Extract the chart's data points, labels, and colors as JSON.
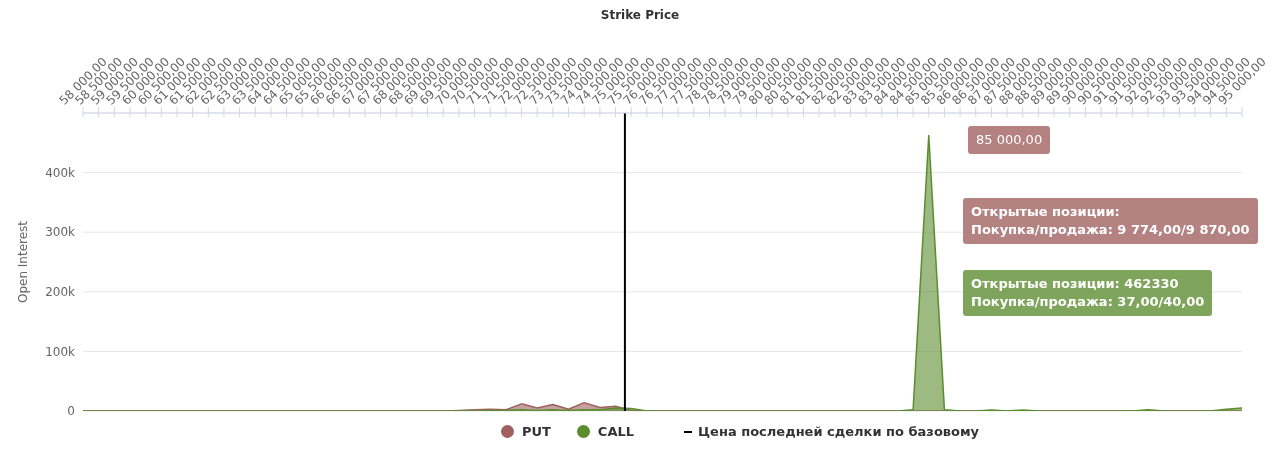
{
  "chart_data": {
    "type": "area",
    "title": "Strike Price",
    "ylabel": "Open Interest",
    "x": [
      58000,
      58500,
      59000,
      59500,
      60000,
      60500,
      61000,
      61500,
      62000,
      62500,
      63000,
      63500,
      64000,
      64500,
      65000,
      65500,
      66000,
      66500,
      67000,
      67500,
      68000,
      68500,
      69000,
      69500,
      70000,
      70500,
      71000,
      71500,
      72000,
      72500,
      73000,
      73500,
      74000,
      74500,
      75000,
      75500,
      76000,
      76500,
      77000,
      77500,
      78000,
      78500,
      79000,
      79500,
      80000,
      80500,
      81000,
      81500,
      82000,
      82500,
      83000,
      83500,
      84000,
      84500,
      85000,
      85500,
      86000,
      86500,
      87000,
      87500,
      88000,
      88500,
      89000,
      89500,
      90000,
      90500,
      91000,
      91500,
      92000,
      92500,
      93000,
      93500,
      94000,
      94500,
      95000
    ],
    "xlim": [
      58000,
      95000
    ],
    "xticks": [
      {
        "value": 58000,
        "label": "58 000,00"
      },
      {
        "value": 58500,
        "label": "58 500,00"
      },
      {
        "value": 59000,
        "label": "59 000,00"
      },
      {
        "value": 59500,
        "label": "59 500,00"
      },
      {
        "value": 60000,
        "label": "60 000,00"
      },
      {
        "value": 60500,
        "label": "60 500,00"
      },
      {
        "value": 61000,
        "label": "61 000,00"
      },
      {
        "value": 61500,
        "label": "61 500,00"
      },
      {
        "value": 62000,
        "label": "62 000,00"
      },
      {
        "value": 62500,
        "label": "62 500,00"
      },
      {
        "value": 63000,
        "label": "63 000,00"
      },
      {
        "value": 63500,
        "label": "63 500,00"
      },
      {
        "value": 64000,
        "label": "64 000,00"
      },
      {
        "value": 64500,
        "label": "64 500,00"
      },
      {
        "value": 65000,
        "label": "65 000,00"
      },
      {
        "value": 65500,
        "label": "65 500,00"
      },
      {
        "value": 66000,
        "label": "66 000,00"
      },
      {
        "value": 66500,
        "label": "66 500,00"
      },
      {
        "value": 67000,
        "label": "67 000,00"
      },
      {
        "value": 67500,
        "label": "67 500,00"
      },
      {
        "value": 68000,
        "label": "68 000,00"
      },
      {
        "value": 68500,
        "label": "68 500,00"
      },
      {
        "value": 69000,
        "label": "69 000,00"
      },
      {
        "value": 69500,
        "label": "69 500,00"
      },
      {
        "value": 70000,
        "label": "70 000,00"
      },
      {
        "value": 70500,
        "label": "70 500,00"
      },
      {
        "value": 71000,
        "label": "71 000,00"
      },
      {
        "value": 71500,
        "label": "71 500,00"
      },
      {
        "value": 72000,
        "label": "72 000,00"
      },
      {
        "value": 72500,
        "label": "72 500,00"
      },
      {
        "value": 73000,
        "label": "73 000,00"
      },
      {
        "value": 73500,
        "label": "73 500,00"
      },
      {
        "value": 74000,
        "label": "74 000,00"
      },
      {
        "value": 74500,
        "label": "74 500,00"
      },
      {
        "value": 75000,
        "label": "75 000,00"
      },
      {
        "value": 75500,
        "label": "75 500,00"
      },
      {
        "value": 76000,
        "label": "76 000,00"
      },
      {
        "value": 76500,
        "label": "76 500,00"
      },
      {
        "value": 77000,
        "label": "77 000,00"
      },
      {
        "value": 77500,
        "label": "77 500,00"
      },
      {
        "value": 78000,
        "label": "78 000,00"
      },
      {
        "value": 78500,
        "label": "78 500,00"
      },
      {
        "value": 79000,
        "label": "79 000,00"
      },
      {
        "value": 79500,
        "label": "79 500,00"
      },
      {
        "value": 80000,
        "label": "80 000,00"
      },
      {
        "value": 80500,
        "label": "80 500,00"
      },
      {
        "value": 81000,
        "label": "81 000,00"
      },
      {
        "value": 81500,
        "label": "81 500,00"
      },
      {
        "value": 82000,
        "label": "82 000,00"
      },
      {
        "value": 82500,
        "label": "82 500,00"
      },
      {
        "value": 83000,
        "label": "83 000,00"
      },
      {
        "value": 83500,
        "label": "83 500,00"
      },
      {
        "value": 84000,
        "label": "84 000,00"
      },
      {
        "value": 84500,
        "label": "84 500,00"
      },
      {
        "value": 85000,
        "label": "85 000,00"
      },
      {
        "value": 85500,
        "label": "85 500,00"
      },
      {
        "value": 86000,
        "label": "86 000,00"
      },
      {
        "value": 86500,
        "label": "86 500,00"
      },
      {
        "value": 87000,
        "label": "87 000,00"
      },
      {
        "value": 87500,
        "label": "87 500,00"
      },
      {
        "value": 88000,
        "label": "88 000,00"
      },
      {
        "value": 88500,
        "label": "88 500,00"
      },
      {
        "value": 89000,
        "label": "89 000,00"
      },
      {
        "value": 89500,
        "label": "89 500,00"
      },
      {
        "value": 90000,
        "label": "90 000,00"
      },
      {
        "value": 90500,
        "label": "90 500,00"
      },
      {
        "value": 91000,
        "label": "91 000,00"
      },
      {
        "value": 91500,
        "label": "91 500,00"
      },
      {
        "value": 92000,
        "label": "92 000,00"
      },
      {
        "value": 92500,
        "label": "92 500,00"
      },
      {
        "value": 93000,
        "label": "93 000,00"
      },
      {
        "value": 93500,
        "label": "93 500,00"
      },
      {
        "value": 94000,
        "label": "94 000,00"
      },
      {
        "value": 94500,
        "label": "94 500,00"
      },
      {
        "value": 95000,
        "label": "95 000,00"
      }
    ],
    "ylim": [
      0,
      500000
    ],
    "yticks": [
      {
        "value": 0,
        "label": "0"
      },
      {
        "value": 100000,
        "label": "100k"
      },
      {
        "value": 200000,
        "label": "200k"
      },
      {
        "value": 300000,
        "label": "300k"
      },
      {
        "value": 400000,
        "label": "400k"
      },
      {
        "value": 500000,
        "label": null
      }
    ],
    "series": [
      {
        "name": "PUT",
        "color": "#a0605e",
        "values": [
          0,
          0,
          0,
          0,
          0,
          0,
          0,
          0,
          0,
          0,
          0,
          0,
          0,
          0,
          0,
          0,
          0,
          0,
          0,
          0,
          0,
          0,
          0,
          0,
          1000,
          2000,
          3000,
          2000,
          12000,
          5000,
          11000,
          3000,
          14000,
          6000,
          8000,
          1000,
          0,
          0,
          0,
          0,
          0,
          0,
          0,
          0,
          0,
          0,
          0,
          0,
          0,
          0,
          0,
          0,
          0,
          0,
          0,
          0,
          0,
          0,
          0,
          0,
          0,
          0,
          0,
          0,
          0,
          0,
          0,
          0,
          0,
          0,
          0,
          0,
          0,
          0,
          0
        ]
      },
      {
        "name": "CALL",
        "color": "#5b8c2e",
        "values": [
          0,
          0,
          0,
          0,
          0,
          0,
          0,
          0,
          0,
          0,
          0,
          0,
          0,
          0,
          0,
          0,
          0,
          0,
          0,
          0,
          0,
          0,
          0,
          0,
          0,
          0,
          1000,
          1000,
          2000,
          1000,
          2000,
          1000,
          2000,
          2000,
          5000,
          4000,
          0,
          0,
          0,
          0,
          0,
          0,
          0,
          0,
          0,
          0,
          0,
          0,
          0,
          0,
          0,
          0,
          0,
          2000,
          462330,
          2000,
          0,
          0,
          1500,
          0,
          1500,
          0,
          0,
          0,
          0,
          0,
          0,
          0,
          2000,
          0,
          0,
          0,
          0,
          3000,
          5000
        ]
      }
    ],
    "ref_lines": [
      {
        "axis": "x",
        "value": 75300,
        "label": "Цена последней сделки по базовому",
        "color": "#000000"
      }
    ],
    "annotations": [
      "85 000,00",
      "Открытые позиции:\nПокупка/продажа: 9 774,00/9 870,00",
      "Открытые позиции: 462330\nПокупка/продажа: 37,00/40,00"
    ],
    "grid": "y",
    "legend": "bottom",
    "marker": "none"
  }
}
